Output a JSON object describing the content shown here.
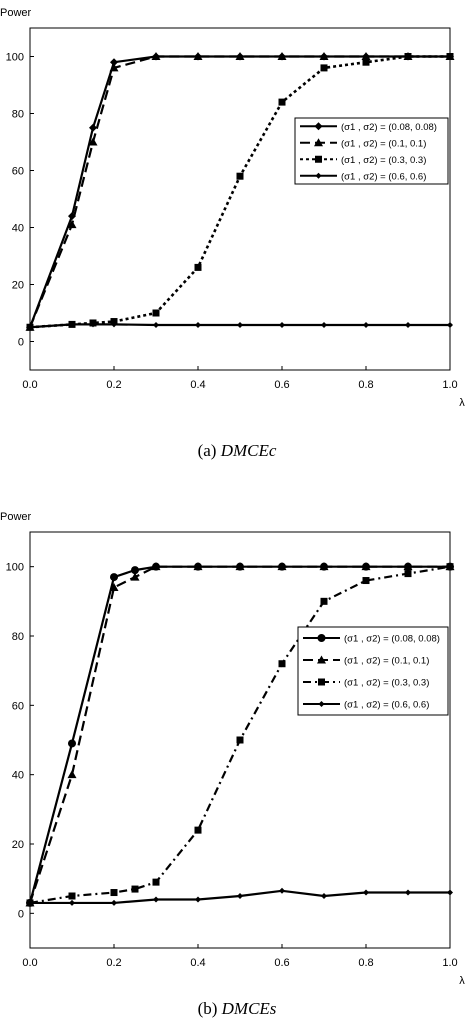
{
  "figure": {
    "captions": [
      "(a) DMCEc",
      "(b) DMCEs"
    ]
  },
  "chart_data": [
    {
      "type": "line",
      "caption": "(a) DMCEc",
      "ylabel": "Power",
      "xlabel": "λ",
      "xlim": [
        0,
        1.0
      ],
      "ylim": [
        -10,
        110
      ],
      "xticks": [
        "0.0",
        "0.2",
        "0.4",
        "0.6",
        "0.8",
        "1.0"
      ],
      "yticks": [
        "0",
        "20",
        "40",
        "60",
        "80",
        "100"
      ],
      "legend_position": "right-middle",
      "series": [
        {
          "name": "(σ1 , σ2) = (0.08, 0.08)",
          "marker": "diamond",
          "dash": "solid",
          "x": [
            0,
            0.1,
            0.15,
            0.2,
            0.3,
            0.4,
            0.5,
            0.6,
            0.7,
            0.8,
            0.9,
            1.0
          ],
          "y": [
            5,
            44,
            75,
            98,
            100,
            100,
            100,
            100,
            100,
            100,
            100,
            100
          ]
        },
        {
          "name": "(σ1 , σ2) = (0.1, 0.1)",
          "marker": "triangle",
          "dash": "long-dash",
          "x": [
            0,
            0.1,
            0.15,
            0.2,
            0.3,
            0.4,
            0.5,
            0.6,
            0.7,
            0.8,
            0.9,
            1.0
          ],
          "y": [
            5,
            41,
            70,
            96,
            100,
            100,
            100,
            100,
            100,
            100,
            100,
            100
          ]
        },
        {
          "name": "(σ1 , σ2) = (0.3, 0.3)",
          "marker": "square",
          "dash": "dotted",
          "x": [
            0,
            0.1,
            0.15,
            0.2,
            0.3,
            0.4,
            0.5,
            0.6,
            0.7,
            0.8,
            0.9,
            1.0
          ],
          "y": [
            5,
            6,
            6.5,
            7,
            10,
            26,
            58,
            84,
            96,
            98,
            100,
            100
          ]
        },
        {
          "name": "(σ1 , σ2) = (0.6, 0.6)",
          "marker": "small-diamond",
          "dash": "solid",
          "x": [
            0,
            0.1,
            0.15,
            0.2,
            0.3,
            0.4,
            0.5,
            0.6,
            0.7,
            0.8,
            0.9,
            1.0
          ],
          "y": [
            5,
            6,
            6,
            6,
            5.8,
            5.8,
            5.8,
            5.8,
            5.8,
            5.8,
            5.8,
            5.8
          ]
        }
      ]
    },
    {
      "type": "line",
      "caption": "(b) DMCEs",
      "ylabel": "Power",
      "xlabel": "λ",
      "xlim": [
        0,
        1.0
      ],
      "ylim": [
        -10,
        110
      ],
      "xticks": [
        "0.0",
        "0.2",
        "0.4",
        "0.6",
        "0.8",
        "1.0"
      ],
      "yticks": [
        "0",
        "20",
        "40",
        "60",
        "80",
        "100"
      ],
      "legend_position": "right-middle",
      "series": [
        {
          "name": "(σ1 , σ2) = (0.08, 0.08)",
          "marker": "circle",
          "dash": "solid",
          "x": [
            0,
            0.1,
            0.2,
            0.25,
            0.3,
            0.4,
            0.5,
            0.6,
            0.7,
            0.8,
            0.9,
            1.0
          ],
          "y": [
            3,
            49,
            97,
            99,
            100,
            100,
            100,
            100,
            100,
            100,
            100,
            100
          ]
        },
        {
          "name": "(σ1 , σ2) = (0.1, 0.1)",
          "marker": "triangle",
          "dash": "long-dash",
          "x": [
            0,
            0.1,
            0.2,
            0.25,
            0.3,
            0.4,
            0.5,
            0.6,
            0.7,
            0.8,
            0.9,
            1.0
          ],
          "y": [
            3,
            40,
            94,
            97,
            100,
            100,
            100,
            100,
            100,
            100,
            100,
            100
          ]
        },
        {
          "name": "(σ1 , σ2) = (0.3, 0.3)",
          "marker": "square",
          "dash": "dash-dot",
          "x": [
            0,
            0.1,
            0.2,
            0.25,
            0.3,
            0.4,
            0.5,
            0.6,
            0.7,
            0.8,
            0.9,
            1.0
          ],
          "y": [
            3,
            5,
            6,
            7,
            9,
            24,
            50,
            72,
            90,
            96,
            98,
            100
          ]
        },
        {
          "name": "(σ1 , σ2) = (0.6, 0.6)",
          "marker": "small-diamond",
          "dash": "solid",
          "x": [
            0,
            0.1,
            0.2,
            0.3,
            0.4,
            0.5,
            0.6,
            0.7,
            0.8,
            0.9,
            1.0
          ],
          "y": [
            3,
            3,
            3,
            4,
            4,
            5,
            6.5,
            5,
            6,
            6,
            6
          ]
        }
      ]
    }
  ]
}
